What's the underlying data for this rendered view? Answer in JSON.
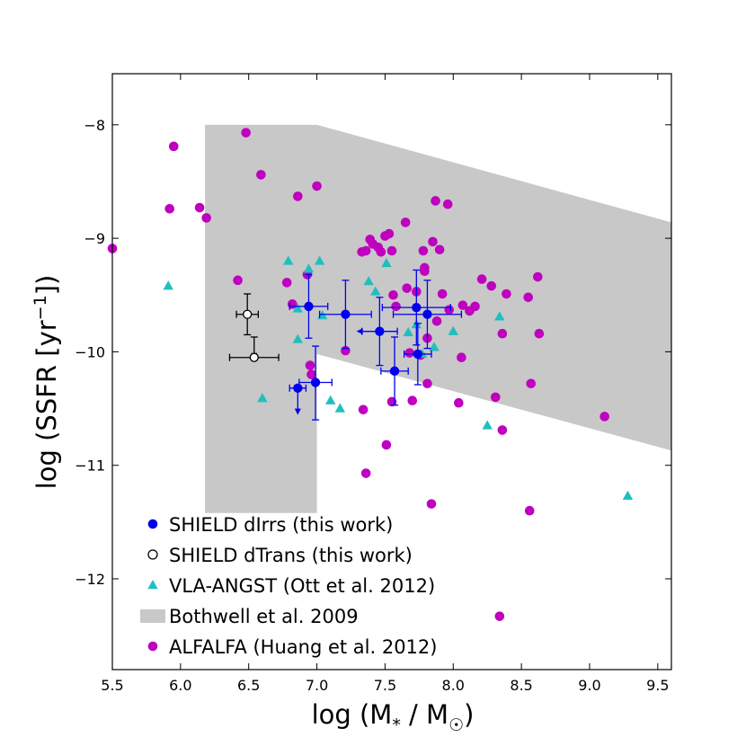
{
  "chart_data": {
    "type": "scatter",
    "xlabel": {
      "prefix": "log (M",
      "sub1": "*",
      "mid": " / M",
      "sub2": "☉",
      "suffix": ")"
    },
    "ylabel": {
      "prefix": "log (SSFR [yr",
      "sup": "−1",
      "suffix": "])"
    },
    "xlim": [
      5.5,
      9.6
    ],
    "ylim": [
      -12.8,
      -7.55
    ],
    "xticks": [
      5.5,
      6.0,
      6.5,
      7.0,
      7.5,
      8.0,
      8.5,
      9.0,
      9.5
    ],
    "xtick_labels": [
      "5.5",
      "6.0",
      "6.5",
      "7.0",
      "7.5",
      "8.0",
      "8.5",
      "9.0",
      "9.5"
    ],
    "yticks": [
      -8,
      -9,
      -10,
      -11,
      -12
    ],
    "ytick_labels": [
      "−8",
      "−9",
      "−10",
      "−11",
      "−12"
    ],
    "grid": false,
    "legend_position": "lower-left",
    "colors": {
      "shield_dirr": "#0000ee",
      "shield_dtrans": "#000000",
      "vla": "#1fbfbf",
      "bothwell": "#c8c8c8",
      "alfalfa": "#bf00bf"
    },
    "legend": [
      {
        "key": "shield_dirr",
        "label": "SHIELD dIrrs (this work)",
        "marker": "filled-circle"
      },
      {
        "key": "shield_dtrans",
        "label": "SHIELD dTrans (this work)",
        "marker": "open-circle"
      },
      {
        "key": "vla",
        "label": "VLA-ANGST (Ott et al. 2012)",
        "marker": "triangle"
      },
      {
        "key": "bothwell",
        "label": "Bothwell et al. 2009",
        "marker": "patch"
      },
      {
        "key": "alfalfa",
        "label": "ALFALFA (Huang et al. 2012)",
        "marker": "filled-circle"
      }
    ],
    "bothwell_region": [
      [
        6.18,
        -8.0
      ],
      [
        7.0,
        -8.0
      ],
      [
        9.6,
        -8.86
      ],
      [
        9.6,
        -10.87
      ],
      [
        7.0,
        -10.02
      ],
      [
        7.0,
        -11.42
      ],
      [
        6.18,
        -11.42
      ]
    ],
    "alfalfa": [
      [
        5.5,
        -9.09
      ],
      [
        5.92,
        -8.74
      ],
      [
        5.95,
        -8.19
      ],
      [
        6.14,
        -8.73
      ],
      [
        6.19,
        -8.82
      ],
      [
        6.48,
        -8.07
      ],
      [
        6.59,
        -8.44
      ],
      [
        6.42,
        -9.37
      ],
      [
        6.78,
        -9.39
      ],
      [
        6.86,
        -8.63
      ],
      [
        7.0,
        -8.54
      ],
      [
        6.93,
        -9.32
      ],
      [
        6.95,
        -10.12
      ],
      [
        6.96,
        -10.2
      ],
      [
        6.82,
        -9.58
      ],
      [
        7.21,
        -9.99
      ],
      [
        7.33,
        -9.12
      ],
      [
        7.36,
        -9.11
      ],
      [
        7.39,
        -9.01
      ],
      [
        7.41,
        -9.05
      ],
      [
        7.45,
        -9.08
      ],
      [
        7.47,
        -9.12
      ],
      [
        7.5,
        -8.98
      ],
      [
        7.53,
        -8.96
      ],
      [
        7.55,
        -9.11
      ],
      [
        7.65,
        -8.86
      ],
      [
        7.56,
        -9.5
      ],
      [
        7.58,
        -9.6
      ],
      [
        7.66,
        -9.44
      ],
      [
        7.73,
        -9.47
      ],
      [
        7.78,
        -9.11
      ],
      [
        7.79,
        -9.26
      ],
      [
        7.79,
        -9.29
      ],
      [
        7.85,
        -9.03
      ],
      [
        7.87,
        -8.67
      ],
      [
        7.9,
        -9.1
      ],
      [
        7.96,
        -8.7
      ],
      [
        7.92,
        -9.49
      ],
      [
        7.97,
        -9.63
      ],
      [
        7.88,
        -9.73
      ],
      [
        7.81,
        -9.88
      ],
      [
        7.76,
        -10.03
      ],
      [
        7.68,
        -10.01
      ],
      [
        7.81,
        -10.28
      ],
      [
        8.07,
        -9.59
      ],
      [
        8.12,
        -9.64
      ],
      [
        8.16,
        -9.6
      ],
      [
        8.21,
        -9.36
      ],
      [
        8.28,
        -9.42
      ],
      [
        8.36,
        -9.84
      ],
      [
        8.39,
        -9.49
      ],
      [
        8.55,
        -9.52
      ],
      [
        8.62,
        -9.34
      ],
      [
        8.63,
        -9.84
      ],
      [
        8.06,
        -10.05
      ],
      [
        8.04,
        -10.45
      ],
      [
        8.31,
        -10.4
      ],
      [
        8.36,
        -10.69
      ],
      [
        8.57,
        -10.28
      ],
      [
        9.11,
        -10.57
      ],
      [
        7.34,
        -10.51
      ],
      [
        7.51,
        -10.82
      ],
      [
        7.55,
        -10.44
      ],
      [
        7.7,
        -10.43
      ],
      [
        7.36,
        -11.07
      ],
      [
        7.84,
        -11.34
      ],
      [
        8.56,
        -11.4
      ],
      [
        8.34,
        -12.33
      ]
    ],
    "vla": [
      [
        5.91,
        -9.42
      ],
      [
        6.6,
        -10.41
      ],
      [
        6.79,
        -9.2
      ],
      [
        6.86,
        -9.62
      ],
      [
        6.86,
        -9.89
      ],
      [
        6.94,
        -9.27
      ],
      [
        7.02,
        -9.2
      ],
      [
        7.04,
        -9.68
      ],
      [
        7.1,
        -10.43
      ],
      [
        7.17,
        -10.5
      ],
      [
        7.38,
        -9.38
      ],
      [
        7.43,
        -9.47
      ],
      [
        7.51,
        -9.22
      ],
      [
        7.67,
        -9.83
      ],
      [
        7.73,
        -9.76
      ],
      [
        7.77,
        -10.02
      ],
      [
        7.86,
        -9.96
      ],
      [
        8.0,
        -9.82
      ],
      [
        8.25,
        -10.65
      ],
      [
        8.34,
        -9.69
      ],
      [
        9.28,
        -11.27
      ]
    ],
    "shield_dirr": [
      {
        "x": 6.86,
        "y": -10.32,
        "xerr": [
          0.06,
          0.06
        ],
        "yerr": [
          0.0,
          0.22
        ],
        "upper_limit": true,
        "left_limit": false
      },
      {
        "x": 6.99,
        "y": -10.27,
        "xerr": [
          0.12,
          0.12
        ],
        "yerr": [
          0.32,
          0.33
        ],
        "upper_limit": false,
        "left_limit": false
      },
      {
        "x": 6.94,
        "y": -9.6,
        "xerr": [
          0.14,
          0.14
        ],
        "yerr": [
          0.28,
          0.28
        ],
        "upper_limit": false,
        "left_limit": false
      },
      {
        "x": 7.21,
        "y": -9.67,
        "xerr": [
          0.19,
          0.19
        ],
        "yerr": [
          0.3,
          0.3
        ],
        "upper_limit": false,
        "left_limit": false
      },
      {
        "x": 7.46,
        "y": -9.82,
        "xerr": [
          0.13,
          0.13
        ],
        "yerr": [
          0.3,
          0.3
        ],
        "upper_limit": false,
        "left_limit": true
      },
      {
        "x": 7.57,
        "y": -10.17,
        "xerr": [
          0.1,
          0.1
        ],
        "yerr": [
          0.3,
          0.3
        ],
        "upper_limit": false,
        "left_limit": false
      },
      {
        "x": 7.73,
        "y": -9.61,
        "xerr": [
          0.25,
          0.25
        ],
        "yerr": [
          0.33,
          0.33
        ],
        "upper_limit": false,
        "left_limit": false
      },
      {
        "x": 7.74,
        "y": -10.02,
        "xerr": [
          0.1,
          0.1
        ],
        "yerr": [
          0.27,
          0.27
        ],
        "upper_limit": false,
        "left_limit": false
      },
      {
        "x": 7.81,
        "y": -9.67,
        "xerr": [
          0.25,
          0.25
        ],
        "yerr": [
          0.3,
          0.3
        ],
        "upper_limit": false,
        "left_limit": false
      }
    ],
    "shield_dtrans": [
      {
        "x": 6.49,
        "y": -9.67,
        "xerr": [
          0.08,
          0.08
        ],
        "yerr": [
          0.18,
          0.18
        ],
        "upper_limit": false
      },
      {
        "x": 6.54,
        "y": -10.05,
        "xerr": [
          0.18,
          0.18
        ],
        "yerr": [
          0.18,
          0.0
        ],
        "upper_limit": true
      }
    ]
  }
}
